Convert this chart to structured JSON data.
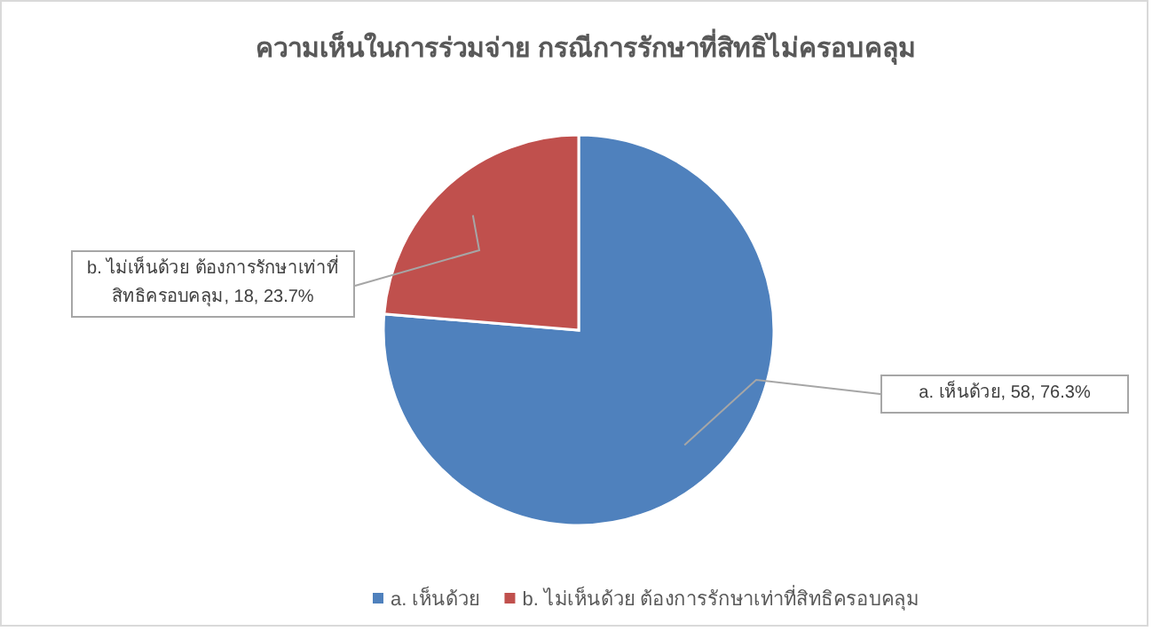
{
  "chart_data": {
    "type": "pie",
    "title": "ความเห็นในการร่วมจ่าย กรณีการรักษาที่สิทธิไม่ครอบคลุม",
    "categories": [
      "a. เห็นด้วย",
      "b. ไม่เห็นด้วย ต้องการรักษาเท่าที่สิทธิครอบคลุม"
    ],
    "values": [
      58,
      18
    ],
    "colors": [
      "#4f81bd",
      "#c0504d"
    ],
    "value_labels": [
      "a. เห็นด้วย, 58, 76.3%",
      "b. ไม่เห็นด้วย ต้องการรักษาเท่าที่สิทธิครอบคลุม, 18, 23.7%"
    ],
    "legend": "bottom"
  }
}
